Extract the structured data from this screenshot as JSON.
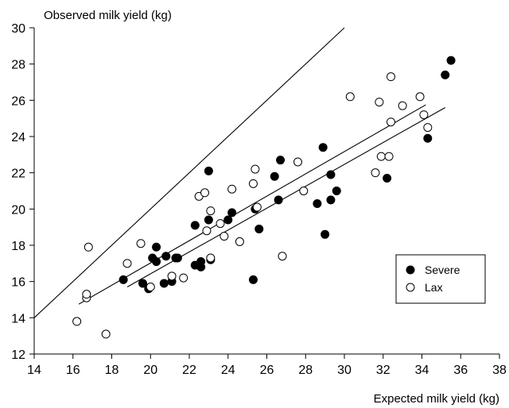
{
  "chart_data": {
    "type": "scatter",
    "title": "",
    "xlabel": "Expected milk yield (kg)",
    "ylabel": "Observed milk yield (kg)",
    "xlim": [
      14,
      38
    ],
    "ylim": [
      12,
      30
    ],
    "x_ticks": [
      14,
      16,
      18,
      20,
      22,
      24,
      26,
      28,
      30,
      32,
      34,
      36,
      38
    ],
    "y_ticks": [
      12,
      14,
      16,
      18,
      20,
      22,
      24,
      26,
      28,
      30
    ],
    "grid": false,
    "legend": {
      "position": "bottom-right",
      "entries": [
        "Severe",
        "Lax"
      ]
    },
    "series": [
      {
        "name": "Severe",
        "marker": "filled-circle",
        "color": "#000000",
        "points": [
          [
            18.6,
            16.1
          ],
          [
            19.6,
            15.9
          ],
          [
            19.9,
            15.6
          ],
          [
            20.1,
            17.3
          ],
          [
            20.3,
            17.1
          ],
          [
            20.3,
            17.9
          ],
          [
            20.7,
            15.9
          ],
          [
            20.8,
            17.4
          ],
          [
            21.1,
            16.0
          ],
          [
            21.3,
            17.3
          ],
          [
            21.4,
            17.3
          ],
          [
            22.3,
            19.1
          ],
          [
            22.3,
            16.9
          ],
          [
            22.6,
            17.1
          ],
          [
            22.6,
            16.8
          ],
          [
            23.0,
            19.4
          ],
          [
            23.0,
            22.1
          ],
          [
            23.1,
            17.2
          ],
          [
            24.0,
            19.4
          ],
          [
            24.2,
            19.8
          ],
          [
            25.3,
            16.1
          ],
          [
            25.4,
            20.0
          ],
          [
            25.6,
            18.9
          ],
          [
            26.4,
            21.8
          ],
          [
            26.6,
            20.5
          ],
          [
            26.7,
            22.7
          ],
          [
            28.6,
            20.3
          ],
          [
            28.9,
            23.4
          ],
          [
            29.0,
            18.6
          ],
          [
            29.3,
            21.9
          ],
          [
            29.3,
            20.5
          ],
          [
            29.6,
            21.0
          ],
          [
            32.2,
            21.7
          ],
          [
            34.3,
            23.9
          ],
          [
            35.2,
            27.4
          ],
          [
            35.5,
            28.2
          ]
        ]
      },
      {
        "name": "Lax",
        "marker": "open-circle",
        "color": "#000000",
        "points": [
          [
            16.2,
            13.8
          ],
          [
            16.7,
            15.1
          ],
          [
            16.7,
            15.3
          ],
          [
            16.8,
            17.9
          ],
          [
            17.7,
            13.1
          ],
          [
            18.8,
            17.0
          ],
          [
            19.5,
            18.1
          ],
          [
            20.0,
            15.7
          ],
          [
            21.1,
            16.3
          ],
          [
            21.7,
            16.2
          ],
          [
            22.5,
            20.7
          ],
          [
            22.8,
            20.9
          ],
          [
            22.9,
            18.8
          ],
          [
            23.1,
            19.9
          ],
          [
            23.1,
            17.3
          ],
          [
            23.6,
            19.2
          ],
          [
            23.8,
            18.5
          ],
          [
            24.2,
            21.1
          ],
          [
            24.6,
            18.2
          ],
          [
            25.3,
            21.4
          ],
          [
            25.4,
            22.2
          ],
          [
            25.5,
            20.1
          ],
          [
            26.8,
            17.4
          ],
          [
            27.6,
            22.6
          ],
          [
            27.9,
            21.0
          ],
          [
            30.3,
            26.2
          ],
          [
            31.6,
            22.0
          ],
          [
            31.8,
            25.9
          ],
          [
            31.9,
            22.9
          ],
          [
            32.3,
            22.9
          ],
          [
            32.4,
            27.3
          ],
          [
            32.4,
            24.8
          ],
          [
            33.0,
            25.7
          ],
          [
            33.9,
            26.2
          ],
          [
            34.1,
            25.2
          ],
          [
            34.3,
            24.5
          ]
        ]
      }
    ],
    "lines": [
      {
        "name": "identity",
        "from": [
          14,
          14
        ],
        "to": [
          30,
          30
        ]
      },
      {
        "name": "regression-lax",
        "from": [
          16.3,
          14.75
        ],
        "to": [
          34.2,
          25.75
        ]
      },
      {
        "name": "regression-severe",
        "from": [
          18.8,
          15.7
        ],
        "to": [
          35.2,
          25.6
        ]
      }
    ]
  }
}
